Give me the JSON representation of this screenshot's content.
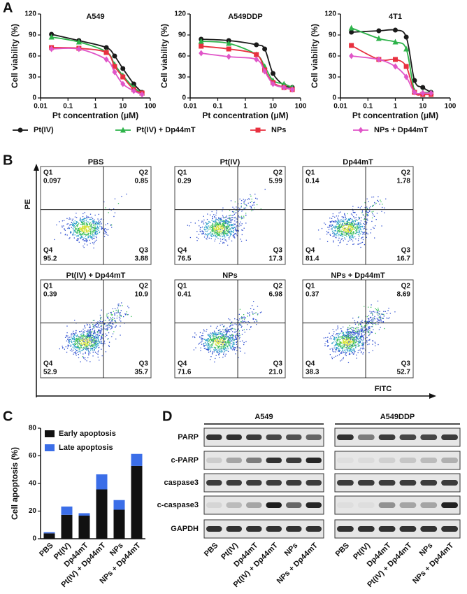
{
  "panel_labels": [
    "A",
    "B",
    "C",
    "D"
  ],
  "chart_data": [
    {
      "type": "line",
      "title": "A549",
      "x_label": "Pt concentration (μM)",
      "y_label": "Cell viability (%)",
      "log_x": true,
      "x": [
        0.025,
        0.25,
        2.5,
        5,
        10,
        25,
        50
      ],
      "xlim": [
        0.01,
        100
      ],
      "xticks": [
        0.01,
        0.1,
        1,
        10,
        100
      ],
      "ylim": [
        0,
        120
      ],
      "yticks": [
        0,
        30,
        60,
        90,
        120
      ],
      "series": [
        {
          "name": "Pt(IV)",
          "color": "#1a1a1a",
          "marker": "circle",
          "values": [
            91,
            82,
            72,
            60,
            42,
            20,
            8
          ]
        },
        {
          "name": "Pt(IV) + Dp44mT",
          "color": "#2db34a",
          "marker": "triangle",
          "values": [
            87,
            80,
            66,
            48,
            32,
            15,
            7
          ]
        },
        {
          "name": "NPs",
          "color": "#e8303f",
          "marker": "square",
          "values": [
            72,
            71,
            65,
            45,
            30,
            12,
            7
          ]
        },
        {
          "name": "NPs + Dp44mT",
          "color": "#e055c8",
          "marker": "diamond",
          "values": [
            70,
            70,
            55,
            37,
            20,
            10,
            5
          ]
        }
      ]
    },
    {
      "type": "line",
      "title": "A549DDP",
      "x_label": "Pt concentration (μM)",
      "y_label": "Cell viability (%)",
      "log_x": true,
      "x": [
        0.025,
        0.25,
        2.5,
        5,
        10,
        25,
        50
      ],
      "xlim": [
        0.01,
        100
      ],
      "xticks": [
        0.01,
        0.1,
        1,
        10,
        100
      ],
      "ylim": [
        0,
        120
      ],
      "yticks": [
        0,
        30,
        60,
        90,
        120
      ],
      "series": [
        {
          "name": "Pt(IV)",
          "color": "#1a1a1a",
          "marker": "circle",
          "values": [
            84,
            82,
            76,
            70,
            35,
            18,
            15
          ]
        },
        {
          "name": "Pt(IV) + Dp44mT",
          "color": "#2db34a",
          "marker": "triangle",
          "values": [
            81,
            78,
            62,
            45,
            25,
            20,
            15
          ]
        },
        {
          "name": "NPs",
          "color": "#e8303f",
          "marker": "square",
          "values": [
            74,
            70,
            62,
            40,
            22,
            15,
            12
          ]
        },
        {
          "name": "NPs + Dp44mT",
          "color": "#e055c8",
          "marker": "diamond",
          "values": [
            64,
            59,
            55,
            38,
            20,
            15,
            12
          ]
        }
      ]
    },
    {
      "type": "line",
      "title": "4T1",
      "x_label": "Pt concentration (μM)",
      "y_label": "Cell viability (%)",
      "log_x": true,
      "x": [
        0.025,
        0.25,
        1,
        2.5,
        5,
        10,
        20
      ],
      "xlim": [
        0.01,
        100
      ],
      "xticks": [
        0.01,
        0.1,
        1,
        10,
        100
      ],
      "ylim": [
        0,
        120
      ],
      "yticks": [
        0,
        30,
        60,
        90,
        120
      ],
      "series": [
        {
          "name": "Pt(IV)",
          "color": "#1a1a1a",
          "marker": "circle",
          "values": [
            94,
            96,
            97,
            87,
            25,
            15,
            8
          ]
        },
        {
          "name": "Pt(IV) + Dp44mT",
          "color": "#2db34a",
          "marker": "triangle",
          "values": [
            100,
            85,
            80,
            70,
            10,
            8,
            8
          ]
        },
        {
          "name": "NPs",
          "color": "#e8303f",
          "marker": "square",
          "values": [
            75,
            55,
            55,
            45,
            8,
            5,
            5
          ]
        },
        {
          "name": "NPs + Dp44mT",
          "color": "#e055c8",
          "marker": "diamond",
          "values": [
            60,
            55,
            45,
            30,
            8,
            7,
            7
          ]
        }
      ]
    },
    {
      "type": "bar",
      "stacked": true,
      "y_label": "Cell apoptosis (%)",
      "legend": "upper left",
      "categories": [
        "PBS",
        "Pt(IV)",
        "Dp44mT",
        "Pt(IV) + Dp44mT",
        "NPs",
        "NPs + Dp44mT"
      ],
      "ylim": [
        0,
        80
      ],
      "yticks": [
        0,
        20,
        40,
        60,
        80
      ],
      "series": [
        {
          "name": "Early apoptosis",
          "color": "#111111",
          "values": [
            3.88,
            17.3,
            16.7,
            35.7,
            21.0,
            52.7
          ]
        },
        {
          "name": "Late apoptosis",
          "color": "#3b6ee8",
          "values": [
            0.85,
            5.99,
            1.78,
            10.9,
            6.98,
            8.69
          ]
        }
      ]
    }
  ],
  "flow": {
    "y_label": "PE",
    "x_label": "FITC",
    "plots": [
      {
        "title": "PBS",
        "quadrants": [
          {
            "name": "Q1",
            "value": "0.097"
          },
          {
            "name": "Q2",
            "value": "0.85"
          },
          {
            "name": "Q3",
            "value": "3.88"
          },
          {
            "name": "Q4",
            "value": "95.2"
          }
        ]
      },
      {
        "title": "Pt(IV)",
        "quadrants": [
          {
            "name": "Q1",
            "value": "0.29"
          },
          {
            "name": "Q2",
            "value": "5.99"
          },
          {
            "name": "Q3",
            "value": "17.3"
          },
          {
            "name": "Q4",
            "value": "76.5"
          }
        ]
      },
      {
        "title": "Dp44mT",
        "quadrants": [
          {
            "name": "Q1",
            "value": "0.14"
          },
          {
            "name": "Q2",
            "value": "1.78"
          },
          {
            "name": "Q3",
            "value": "16.7"
          },
          {
            "name": "Q4",
            "value": "81.4"
          }
        ]
      },
      {
        "title": "Pt(IV) + Dp44mT",
        "quadrants": [
          {
            "name": "Q1",
            "value": "0.39"
          },
          {
            "name": "Q2",
            "value": "10.9"
          },
          {
            "name": "Q3",
            "value": "35.7"
          },
          {
            "name": "Q4",
            "value": "52.9"
          }
        ]
      },
      {
        "title": "NPs",
        "quadrants": [
          {
            "name": "Q1",
            "value": "0.41"
          },
          {
            "name": "Q2",
            "value": "6.98"
          },
          {
            "name": "Q3",
            "value": "21.0"
          },
          {
            "name": "Q4",
            "value": "71.6"
          }
        ]
      },
      {
        "title": "NPs + Dp44mT",
        "quadrants": [
          {
            "name": "Q1",
            "value": "0.37"
          },
          {
            "name": "Q2",
            "value": "8.69"
          },
          {
            "name": "Q3",
            "value": "52.7"
          },
          {
            "name": "Q4",
            "value": "38.3"
          }
        ]
      }
    ]
  },
  "blot": {
    "groups": [
      "A549",
      "A549DDP"
    ],
    "proteins": [
      "PARP",
      "c-PARP",
      "caspase3",
      "c-caspase3",
      "GAPDH"
    ],
    "lanes": [
      "PBS",
      "Pt(IV)",
      "Dp44mT",
      "Pt(IV) + Dp44mT",
      "NPs",
      "NPs + Dp44mT"
    ]
  }
}
